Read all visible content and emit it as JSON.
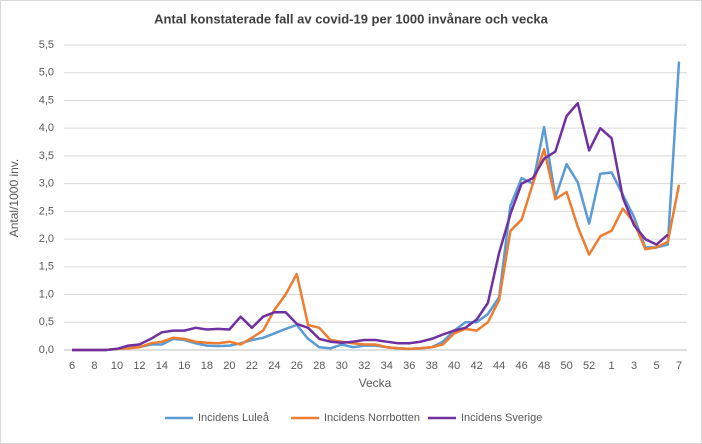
{
  "chart_data": {
    "type": "line",
    "title": "Antal konstaterade fall av covid-19 per 1000 invånare och vecka",
    "x_label": "Vecka",
    "y_label": "Antal/1000 inv.",
    "categories": [
      "6",
      null,
      "8",
      null,
      "10",
      null,
      "12",
      null,
      "14",
      null,
      "16",
      null,
      "18",
      null,
      "20",
      null,
      "22",
      null,
      "24",
      null,
      "26",
      null,
      "28",
      null,
      "30",
      null,
      "32",
      null,
      "34",
      null,
      "36",
      null,
      "38",
      null,
      "40",
      null,
      "42",
      null,
      "44",
      null,
      "46",
      null,
      "48",
      null,
      "50",
      null,
      "52",
      null,
      "1",
      null,
      "3",
      null,
      "5",
      null,
      "7"
    ],
    "series": [
      {
        "name": "Incidens Luleå",
        "color": "#5b9bd5",
        "values": [
          0,
          0,
          0,
          0,
          0.02,
          0.05,
          0.05,
          0.1,
          0.1,
          0.2,
          0.18,
          0.12,
          0.08,
          0.07,
          0.08,
          0.12,
          0.18,
          0.22,
          0.3,
          0.38,
          0.45,
          0.2,
          0.05,
          0.03,
          0.1,
          0.05,
          0.08,
          0.08,
          0.05,
          0.03,
          0.02,
          0.03,
          0.05,
          0.15,
          0.35,
          0.5,
          0.5,
          0.65,
          0.95,
          2.6,
          3.1,
          3.0,
          4.02,
          2.75,
          3.35,
          3.02,
          2.28,
          3.18,
          3.2,
          2.8,
          2.4,
          1.85,
          1.85,
          1.9,
          5.2
        ]
      },
      {
        "name": "Incidens Norrbotten",
        "color": "#ed7d31",
        "values": [
          0,
          0,
          0,
          0,
          0.02,
          0.03,
          0.05,
          0.12,
          0.15,
          0.22,
          0.2,
          0.15,
          0.13,
          0.12,
          0.15,
          0.1,
          0.22,
          0.35,
          0.72,
          1.0,
          1.37,
          0.45,
          0.4,
          0.18,
          0.15,
          0.12,
          0.1,
          0.1,
          0.05,
          0.03,
          0.02,
          0.03,
          0.05,
          0.1,
          0.3,
          0.38,
          0.35,
          0.5,
          0.9,
          2.15,
          2.35,
          3.0,
          3.62,
          2.72,
          2.85,
          2.22,
          1.72,
          2.05,
          2.15,
          2.55,
          2.3,
          1.82,
          1.85,
          1.95,
          2.98
        ]
      },
      {
        "name": "Incidens Sverige",
        "color": "#7030a0",
        "values": [
          0,
          0,
          0,
          0,
          0.02,
          0.08,
          0.1,
          0.2,
          0.32,
          0.35,
          0.35,
          0.4,
          0.37,
          0.38,
          0.37,
          0.6,
          0.4,
          0.6,
          0.68,
          0.68,
          0.47,
          0.4,
          0.2,
          0.15,
          0.13,
          0.15,
          0.18,
          0.18,
          0.15,
          0.12,
          0.12,
          0.15,
          0.2,
          0.28,
          0.35,
          0.4,
          0.55,
          0.85,
          1.75,
          2.45,
          3.0,
          3.1,
          3.45,
          3.58,
          4.22,
          4.45,
          3.6,
          4.0,
          3.82,
          2.75,
          2.25,
          2.0,
          1.9,
          2.08,
          null
        ]
      }
    ],
    "ylim": [
      0,
      5.5
    ],
    "yticks": [
      {
        "value": 0,
        "label": "0,0"
      },
      {
        "value": 0.5,
        "label": "0,5"
      },
      {
        "value": 1,
        "label": "1,0"
      },
      {
        "value": 1.5,
        "label": "1,5"
      },
      {
        "value": 2,
        "label": "2,0"
      },
      {
        "value": 2.5,
        "label": "2,5"
      },
      {
        "value": 3,
        "label": "3,0"
      },
      {
        "value": 3.5,
        "label": "3,5"
      },
      {
        "value": 4,
        "label": "4,0"
      },
      {
        "value": 4.5,
        "label": "4,5"
      },
      {
        "value": 5,
        "label": "5,0"
      },
      {
        "value": 5.5,
        "label": "5,5"
      }
    ],
    "grid": true,
    "legend": "bottom"
  }
}
